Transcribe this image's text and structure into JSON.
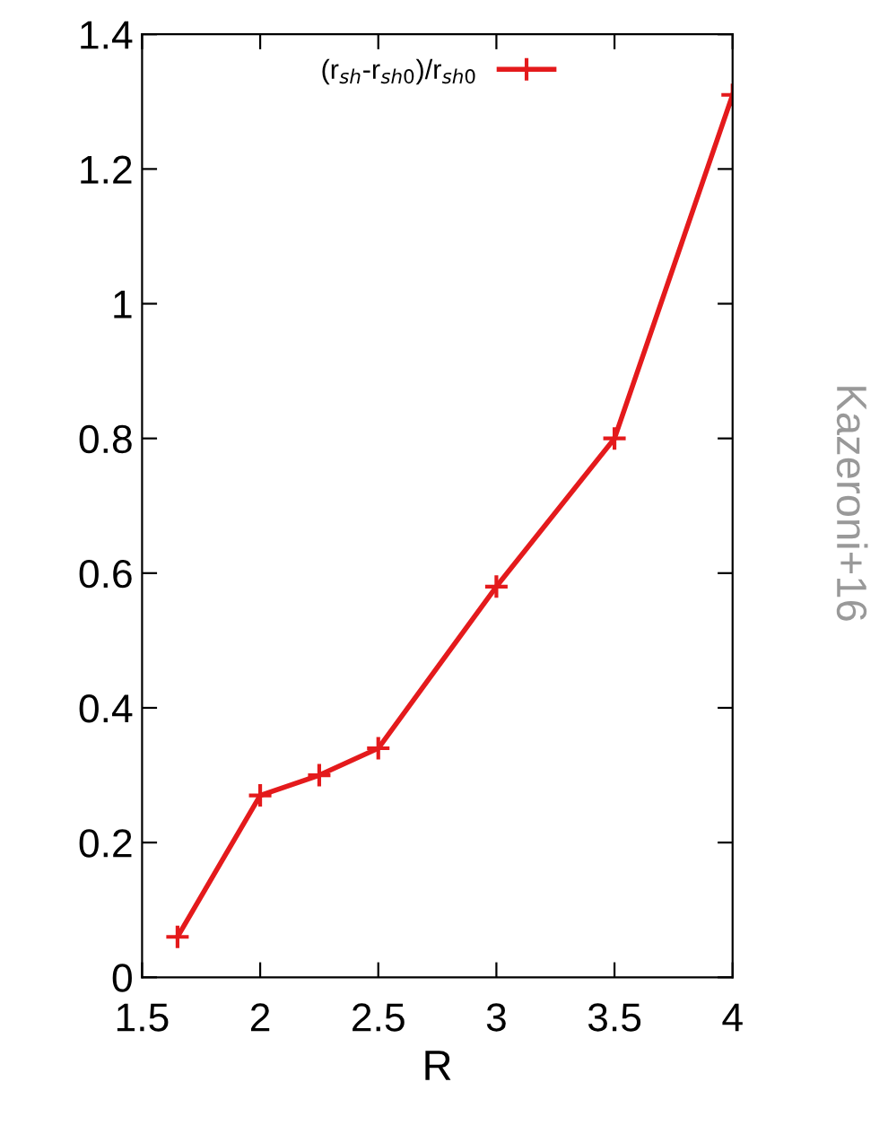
{
  "chart_data": {
    "type": "line",
    "xlabel": "R",
    "x": [
      1.65,
      2,
      2.25,
      2.5,
      3,
      3.5,
      4
    ],
    "series": [
      {
        "name": "(r$_{sh}$-r$_{sh0}$)/r$_{sh0}$",
        "color": "#e41a1c",
        "values": [
          0.06,
          0.27,
          0.3,
          0.34,
          0.58,
          0.8,
          1.31
        ]
      }
    ],
    "xlim": [
      1.5,
      4
    ],
    "xticks": [
      1.5,
      2,
      2.5,
      3,
      3.5,
      4
    ],
    "ylim": [
      0,
      1.4
    ],
    "yticks": [
      0,
      0.2,
      0.4,
      0.6,
      0.8,
      1,
      1.2,
      1.4
    ],
    "marker": "cross",
    "line_style": "solid",
    "grid": false,
    "legend": "top",
    "annotations": [
      "Kazeroni+16"
    ]
  }
}
